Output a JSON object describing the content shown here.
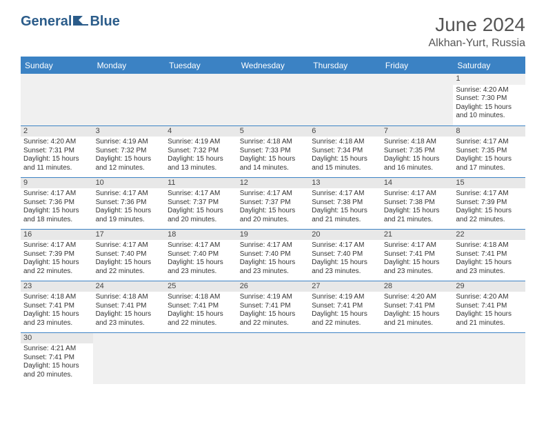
{
  "brand": {
    "part1": "General",
    "part2": "Blue"
  },
  "title": "June 2024",
  "location": "Alkhan-Yurt, Russia",
  "headers": [
    "Sunday",
    "Monday",
    "Tuesday",
    "Wednesday",
    "Thursday",
    "Friday",
    "Saturday"
  ],
  "colors": {
    "header_bg": "#3b82c4",
    "header_text": "#ffffff",
    "daynum_bg": "#e8e8e8",
    "border": "#3b82c4",
    "logo_color": "#2b5c8a"
  },
  "weeks": [
    [
      null,
      null,
      null,
      null,
      null,
      null,
      {
        "d": "1",
        "sr": "Sunrise: 4:20 AM",
        "ss": "Sunset: 7:30 PM",
        "dl1": "Daylight: 15 hours",
        "dl2": "and 10 minutes."
      }
    ],
    [
      {
        "d": "2",
        "sr": "Sunrise: 4:20 AM",
        "ss": "Sunset: 7:31 PM",
        "dl1": "Daylight: 15 hours",
        "dl2": "and 11 minutes."
      },
      {
        "d": "3",
        "sr": "Sunrise: 4:19 AM",
        "ss": "Sunset: 7:32 PM",
        "dl1": "Daylight: 15 hours",
        "dl2": "and 12 minutes."
      },
      {
        "d": "4",
        "sr": "Sunrise: 4:19 AM",
        "ss": "Sunset: 7:32 PM",
        "dl1": "Daylight: 15 hours",
        "dl2": "and 13 minutes."
      },
      {
        "d": "5",
        "sr": "Sunrise: 4:18 AM",
        "ss": "Sunset: 7:33 PM",
        "dl1": "Daylight: 15 hours",
        "dl2": "and 14 minutes."
      },
      {
        "d": "6",
        "sr": "Sunrise: 4:18 AM",
        "ss": "Sunset: 7:34 PM",
        "dl1": "Daylight: 15 hours",
        "dl2": "and 15 minutes."
      },
      {
        "d": "7",
        "sr": "Sunrise: 4:18 AM",
        "ss": "Sunset: 7:35 PM",
        "dl1": "Daylight: 15 hours",
        "dl2": "and 16 minutes."
      },
      {
        "d": "8",
        "sr": "Sunrise: 4:17 AM",
        "ss": "Sunset: 7:35 PM",
        "dl1": "Daylight: 15 hours",
        "dl2": "and 17 minutes."
      }
    ],
    [
      {
        "d": "9",
        "sr": "Sunrise: 4:17 AM",
        "ss": "Sunset: 7:36 PM",
        "dl1": "Daylight: 15 hours",
        "dl2": "and 18 minutes."
      },
      {
        "d": "10",
        "sr": "Sunrise: 4:17 AM",
        "ss": "Sunset: 7:36 PM",
        "dl1": "Daylight: 15 hours",
        "dl2": "and 19 minutes."
      },
      {
        "d": "11",
        "sr": "Sunrise: 4:17 AM",
        "ss": "Sunset: 7:37 PM",
        "dl1": "Daylight: 15 hours",
        "dl2": "and 20 minutes."
      },
      {
        "d": "12",
        "sr": "Sunrise: 4:17 AM",
        "ss": "Sunset: 7:37 PM",
        "dl1": "Daylight: 15 hours",
        "dl2": "and 20 minutes."
      },
      {
        "d": "13",
        "sr": "Sunrise: 4:17 AM",
        "ss": "Sunset: 7:38 PM",
        "dl1": "Daylight: 15 hours",
        "dl2": "and 21 minutes."
      },
      {
        "d": "14",
        "sr": "Sunrise: 4:17 AM",
        "ss": "Sunset: 7:38 PM",
        "dl1": "Daylight: 15 hours",
        "dl2": "and 21 minutes."
      },
      {
        "d": "15",
        "sr": "Sunrise: 4:17 AM",
        "ss": "Sunset: 7:39 PM",
        "dl1": "Daylight: 15 hours",
        "dl2": "and 22 minutes."
      }
    ],
    [
      {
        "d": "16",
        "sr": "Sunrise: 4:17 AM",
        "ss": "Sunset: 7:39 PM",
        "dl1": "Daylight: 15 hours",
        "dl2": "and 22 minutes."
      },
      {
        "d": "17",
        "sr": "Sunrise: 4:17 AM",
        "ss": "Sunset: 7:40 PM",
        "dl1": "Daylight: 15 hours",
        "dl2": "and 22 minutes."
      },
      {
        "d": "18",
        "sr": "Sunrise: 4:17 AM",
        "ss": "Sunset: 7:40 PM",
        "dl1": "Daylight: 15 hours",
        "dl2": "and 23 minutes."
      },
      {
        "d": "19",
        "sr": "Sunrise: 4:17 AM",
        "ss": "Sunset: 7:40 PM",
        "dl1": "Daylight: 15 hours",
        "dl2": "and 23 minutes."
      },
      {
        "d": "20",
        "sr": "Sunrise: 4:17 AM",
        "ss": "Sunset: 7:40 PM",
        "dl1": "Daylight: 15 hours",
        "dl2": "and 23 minutes."
      },
      {
        "d": "21",
        "sr": "Sunrise: 4:17 AM",
        "ss": "Sunset: 7:41 PM",
        "dl1": "Daylight: 15 hours",
        "dl2": "and 23 minutes."
      },
      {
        "d": "22",
        "sr": "Sunrise: 4:18 AM",
        "ss": "Sunset: 7:41 PM",
        "dl1": "Daylight: 15 hours",
        "dl2": "and 23 minutes."
      }
    ],
    [
      {
        "d": "23",
        "sr": "Sunrise: 4:18 AM",
        "ss": "Sunset: 7:41 PM",
        "dl1": "Daylight: 15 hours",
        "dl2": "and 23 minutes."
      },
      {
        "d": "24",
        "sr": "Sunrise: 4:18 AM",
        "ss": "Sunset: 7:41 PM",
        "dl1": "Daylight: 15 hours",
        "dl2": "and 23 minutes."
      },
      {
        "d": "25",
        "sr": "Sunrise: 4:18 AM",
        "ss": "Sunset: 7:41 PM",
        "dl1": "Daylight: 15 hours",
        "dl2": "and 22 minutes."
      },
      {
        "d": "26",
        "sr": "Sunrise: 4:19 AM",
        "ss": "Sunset: 7:41 PM",
        "dl1": "Daylight: 15 hours",
        "dl2": "and 22 minutes."
      },
      {
        "d": "27",
        "sr": "Sunrise: 4:19 AM",
        "ss": "Sunset: 7:41 PM",
        "dl1": "Daylight: 15 hours",
        "dl2": "and 22 minutes."
      },
      {
        "d": "28",
        "sr": "Sunrise: 4:20 AM",
        "ss": "Sunset: 7:41 PM",
        "dl1": "Daylight: 15 hours",
        "dl2": "and 21 minutes."
      },
      {
        "d": "29",
        "sr": "Sunrise: 4:20 AM",
        "ss": "Sunset: 7:41 PM",
        "dl1": "Daylight: 15 hours",
        "dl2": "and 21 minutes."
      }
    ],
    [
      {
        "d": "30",
        "sr": "Sunrise: 4:21 AM",
        "ss": "Sunset: 7:41 PM",
        "dl1": "Daylight: 15 hours",
        "dl2": "and 20 minutes."
      },
      null,
      null,
      null,
      null,
      null,
      null
    ]
  ]
}
